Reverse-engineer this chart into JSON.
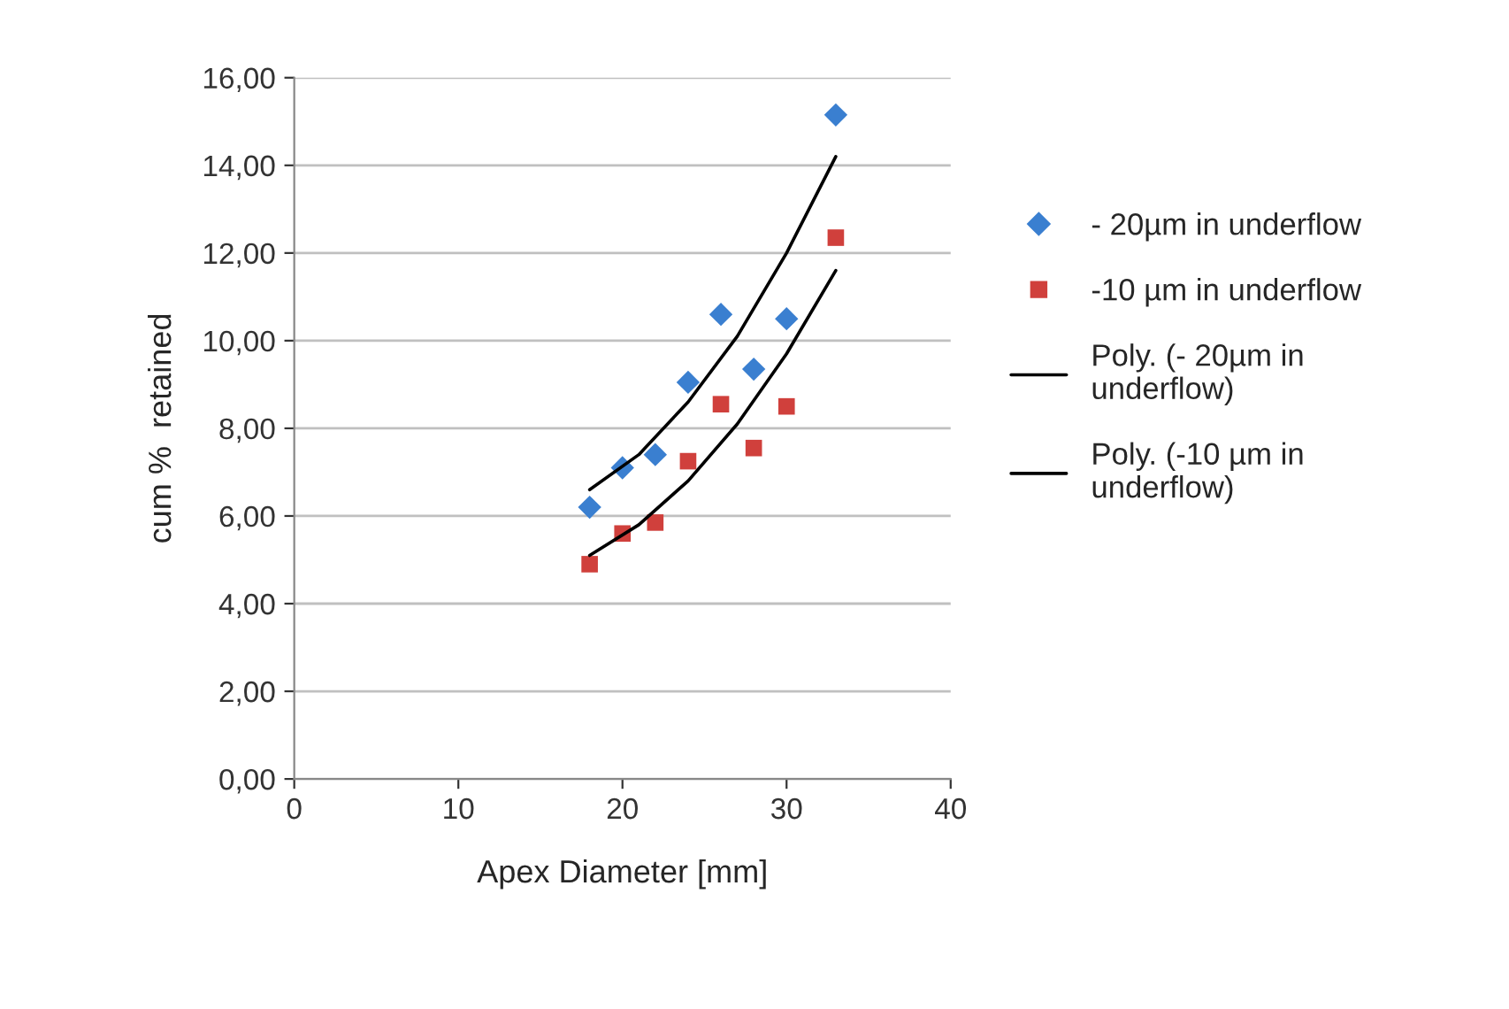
{
  "chart_data": {
    "type": "scatter",
    "xlabel": "Apex Diameter [mm]",
    "ylabel": "cum %  retained",
    "xlim": [
      0,
      40
    ],
    "xticks": [
      0,
      10,
      20,
      30,
      40
    ],
    "ylim": [
      0,
      16
    ],
    "yticks": [
      {
        "value": 0,
        "label": "0,00"
      },
      {
        "value": 2,
        "label": "2,00"
      },
      {
        "value": 4,
        "label": "4,00"
      },
      {
        "value": 6,
        "label": "6,00"
      },
      {
        "value": 8,
        "label": "8,00"
      },
      {
        "value": 10,
        "label": "10,00"
      },
      {
        "value": 12,
        "label": "12,00"
      },
      {
        "value": 14,
        "label": "14,00"
      },
      {
        "value": 16,
        "label": "16,00"
      }
    ],
    "grid": "y",
    "legend": "right",
    "series": [
      {
        "name": "- 20µm in underflow",
        "marker": "diamond",
        "color": "#3a7fd0",
        "x": [
          18,
          20,
          22,
          24,
          26,
          28,
          30,
          33
        ],
        "values": [
          6.2,
          7.1,
          7.4,
          9.05,
          10.6,
          9.35,
          10.5,
          15.15
        ]
      },
      {
        "name": "-10 µm in underflow",
        "marker": "square",
        "color": "#d0403c",
        "x": [
          18,
          20,
          22,
          24,
          26,
          28,
          30,
          33
        ],
        "values": [
          4.9,
          5.6,
          5.85,
          7.25,
          8.55,
          7.55,
          8.5,
          12.35
        ]
      },
      {
        "name": "Poly. (- 20µm in\nunderflow)",
        "type": "line",
        "marker": "none",
        "color": "#000000",
        "x": [
          18,
          21,
          24,
          27,
          30,
          33
        ],
        "values": [
          6.6,
          7.4,
          8.6,
          10.1,
          12.0,
          14.2
        ]
      },
      {
        "name": "Poly. (-10 µm in\nunderflow)",
        "type": "line",
        "marker": "none",
        "color": "#000000",
        "x": [
          18,
          21,
          24,
          27,
          30,
          33
        ],
        "values": [
          5.1,
          5.8,
          6.8,
          8.1,
          9.7,
          11.6
        ]
      }
    ]
  }
}
